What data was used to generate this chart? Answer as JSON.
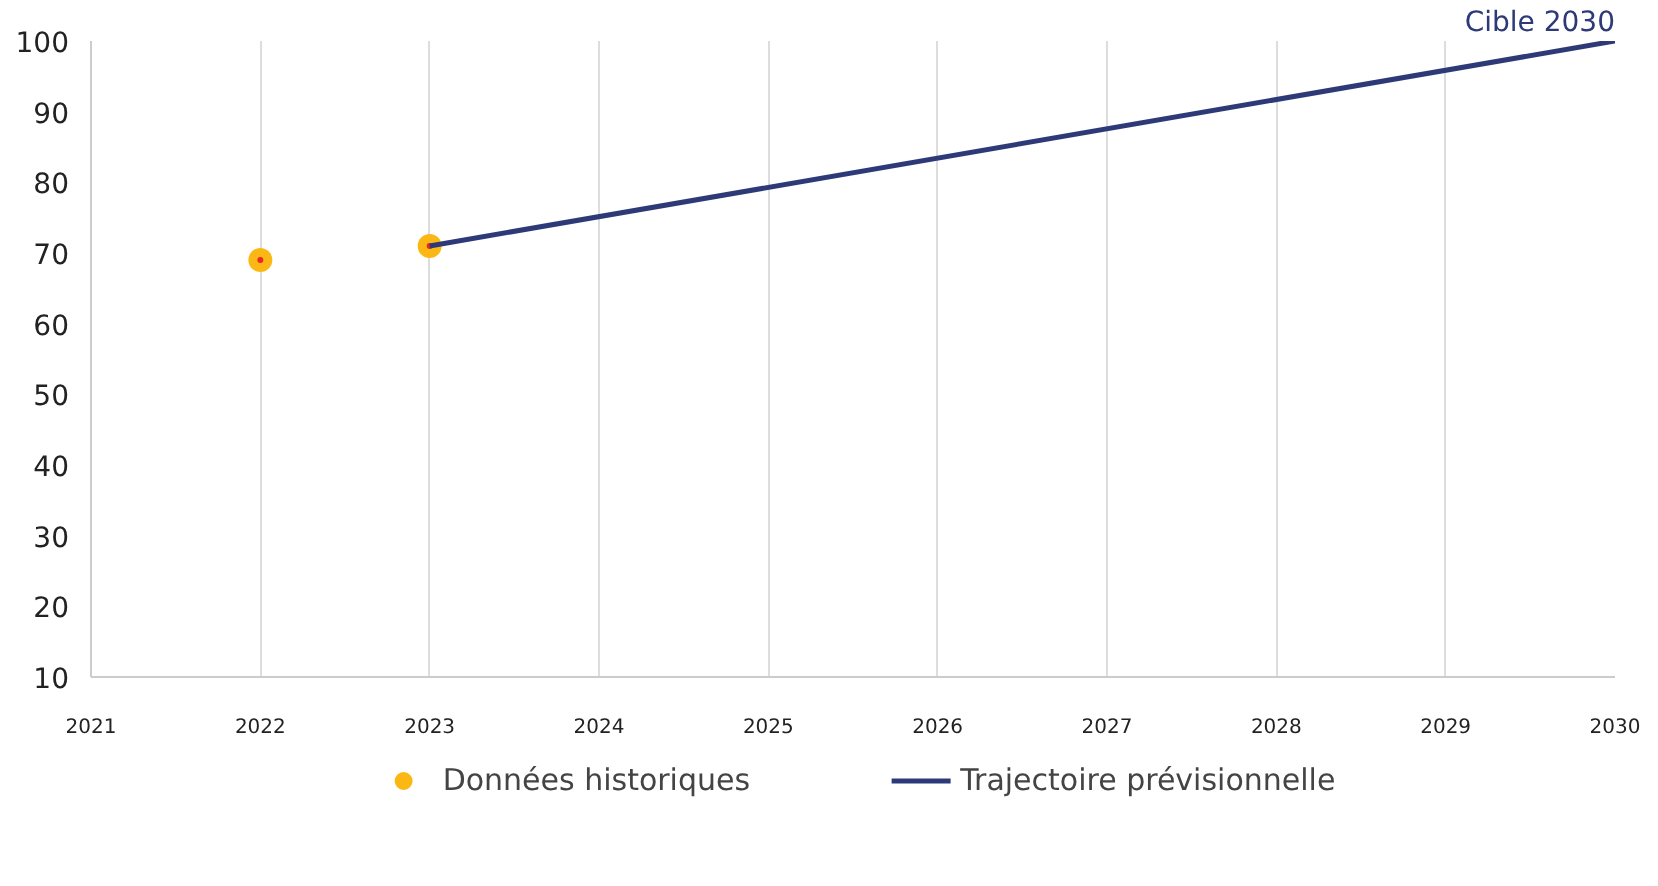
{
  "chart_data": {
    "type": "line",
    "series": [
      {
        "name": "Données historiques",
        "type": "scatter",
        "color": "#fbb814",
        "x": [
          2022,
          2023
        ],
        "values": [
          69,
          71
        ]
      },
      {
        "name": "Trajectoire prévisionnelle",
        "color": "#2e3a78",
        "x": [
          2023,
          2030
        ],
        "values": [
          71,
          100
        ]
      }
    ],
    "xlim": [
      2021,
      2030
    ],
    "xticks": [
      2021,
      2022,
      2023,
      2024,
      2025,
      2026,
      2027,
      2028,
      2029,
      2030
    ],
    "ylim": [
      10,
      100
    ],
    "yticks": [
      10,
      20,
      30,
      40,
      50,
      60,
      70,
      80,
      90,
      100
    ],
    "annotations": [
      "Cible 2030"
    ],
    "grid": "x",
    "legend": "bottom",
    "marker": "circle",
    "line_style": "solid"
  }
}
